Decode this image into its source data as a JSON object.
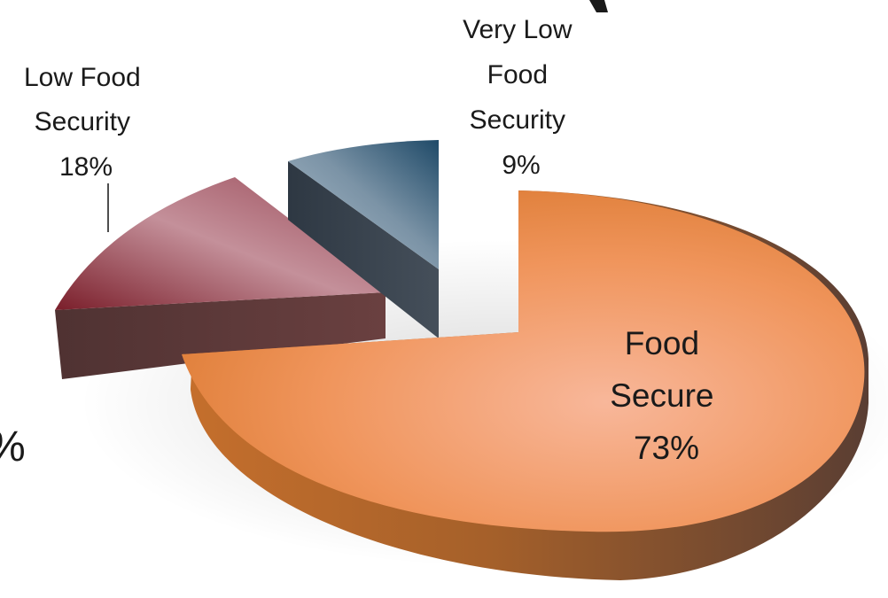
{
  "chart_data": {
    "type": "pie",
    "style": "3d-exploded",
    "slices": [
      {
        "name": "Food Secure",
        "label_lines": [
          "Food",
          "Secure"
        ],
        "value": 73,
        "value_label": "73%",
        "color": "#e07a2c"
      },
      {
        "name": "Low Food Security",
        "label_lines": [
          "Low Food",
          "Security"
        ],
        "value": 18,
        "value_label": "18%",
        "color": "#8a2a36"
      },
      {
        "name": "Very Low Food Security",
        "label_lines": [
          "Very Low",
          "Food",
          "Security"
        ],
        "value": 9,
        "value_label": "9%",
        "color": "#2a4d66"
      }
    ],
    "cropped_fragments": [
      "%"
    ]
  }
}
